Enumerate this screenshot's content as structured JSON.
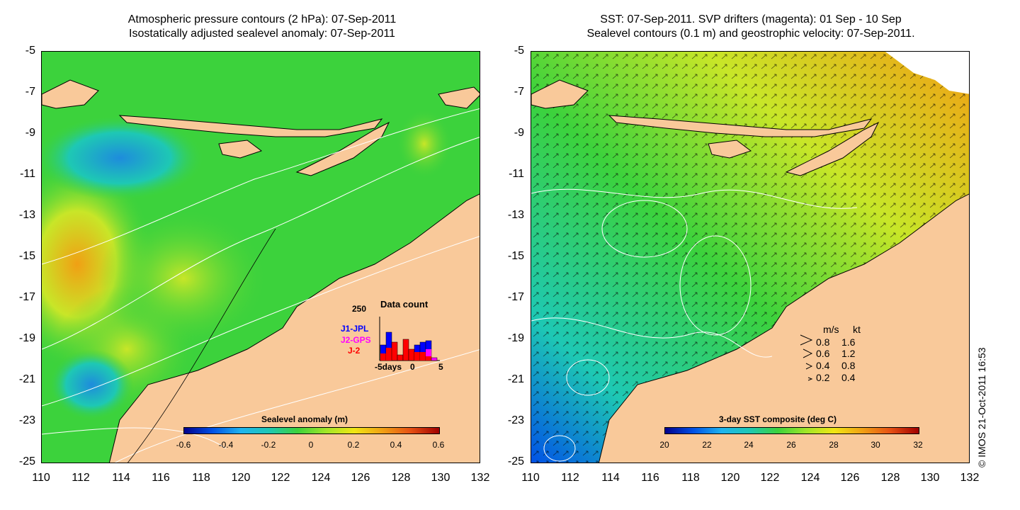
{
  "left_panel": {
    "title_line1": "Atmospheric pressure contours (2 hPa): 07-Sep-2011",
    "title_line2": "Isostatically adjusted sealevel anomaly: 07-Sep-2011",
    "colorbar": {
      "title": "Sealevel anomaly (m)",
      "ticks": [
        "-0.6",
        "-0.4",
        "-0.2",
        "0",
        "0.2",
        "0.4",
        "0.6"
      ]
    },
    "data_count": {
      "title": "Data count",
      "max_label": "250",
      "series": [
        "J1-JPL",
        "J2-GPS",
        "J-2"
      ],
      "series_colors": [
        "#0000ff",
        "#ff00ff",
        "#ff0000"
      ],
      "x_labels": [
        "-5days",
        "0",
        "5"
      ]
    }
  },
  "right_panel": {
    "title_line1": "SST: 07-Sep-2011. SVP drifters (magenta): 01 Sep - 10 Sep",
    "title_line2": "Sealevel contours (0.1 m) and geostrophic velocity: 07-Sep-2011.",
    "colorbar": {
      "title": "3-day SST composite (deg C)",
      "ticks": [
        "20",
        "22",
        "24",
        "26",
        "28",
        "30",
        "32"
      ]
    },
    "velocity_legend": {
      "header_ms": "m/s",
      "header_kt": "kt",
      "rows": [
        {
          "ms": "0.8",
          "kt": "1.6"
        },
        {
          "ms": "0.6",
          "kt": "1.2"
        },
        {
          "ms": "0.4",
          "kt": "0.8"
        },
        {
          "ms": "0.2",
          "kt": "0.4"
        }
      ]
    }
  },
  "axes": {
    "y_ticks": [
      "-5",
      "-7",
      "-9",
      "-11",
      "-13",
      "-15",
      "-17",
      "-19",
      "-21",
      "-23",
      "-25"
    ],
    "x_ticks": [
      "110",
      "112",
      "114",
      "116",
      "118",
      "120",
      "122",
      "124",
      "126",
      "128",
      "130",
      "132"
    ]
  },
  "credit": "© IMOS 21-Oct-2011 16:53",
  "colors": {
    "land": "#f9c99a",
    "ocean_green": "#3cd23c",
    "ocean_yellow": "#c8e628",
    "ocean_orange": "#f0a014",
    "ocean_cyan": "#1ec8b4"
  }
}
